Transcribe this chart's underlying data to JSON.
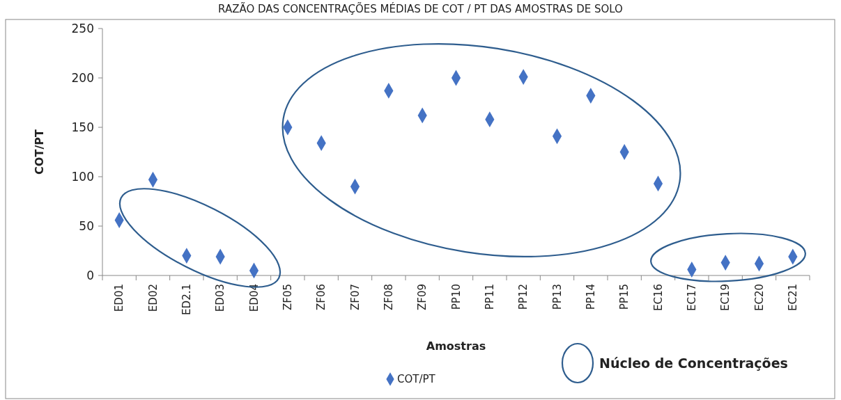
{
  "chart_data": {
    "type": "scatter",
    "title": "RAZÃO DAS CONCENTRAÇÕES MÉDIAS DE COT / PT DAS AMOSTRAS DE SOLO",
    "categories": [
      "ED01",
      "ED02",
      "ED2.1",
      "ED03",
      "ED04",
      "ZF05",
      "ZF06",
      "ZF07",
      "ZF08",
      "ZF09",
      "PP10",
      "PP11",
      "PP12",
      "PP13",
      "PP14",
      "PP15",
      "EC16",
      "EC17",
      "EC19",
      "EC20",
      "EC21"
    ],
    "series": [
      {
        "name": "COT/PT",
        "color": "#4472c4",
        "values": [
          56,
          97,
          20,
          19,
          5,
          150,
          134,
          90,
          187,
          162,
          200,
          158,
          201,
          141,
          182,
          125,
          93,
          6,
          13,
          12,
          19
        ]
      }
    ],
    "xlabel": "Amostras",
    "ylabel": "COT/PT",
    "ylim": [
      0,
      250
    ],
    "yticks": [
      0,
      50,
      100,
      150,
      200,
      250
    ],
    "annotations": [
      "Núcleo de Concentrações"
    ],
    "marker": "diamond",
    "legend": "bottom",
    "grid": false
  }
}
